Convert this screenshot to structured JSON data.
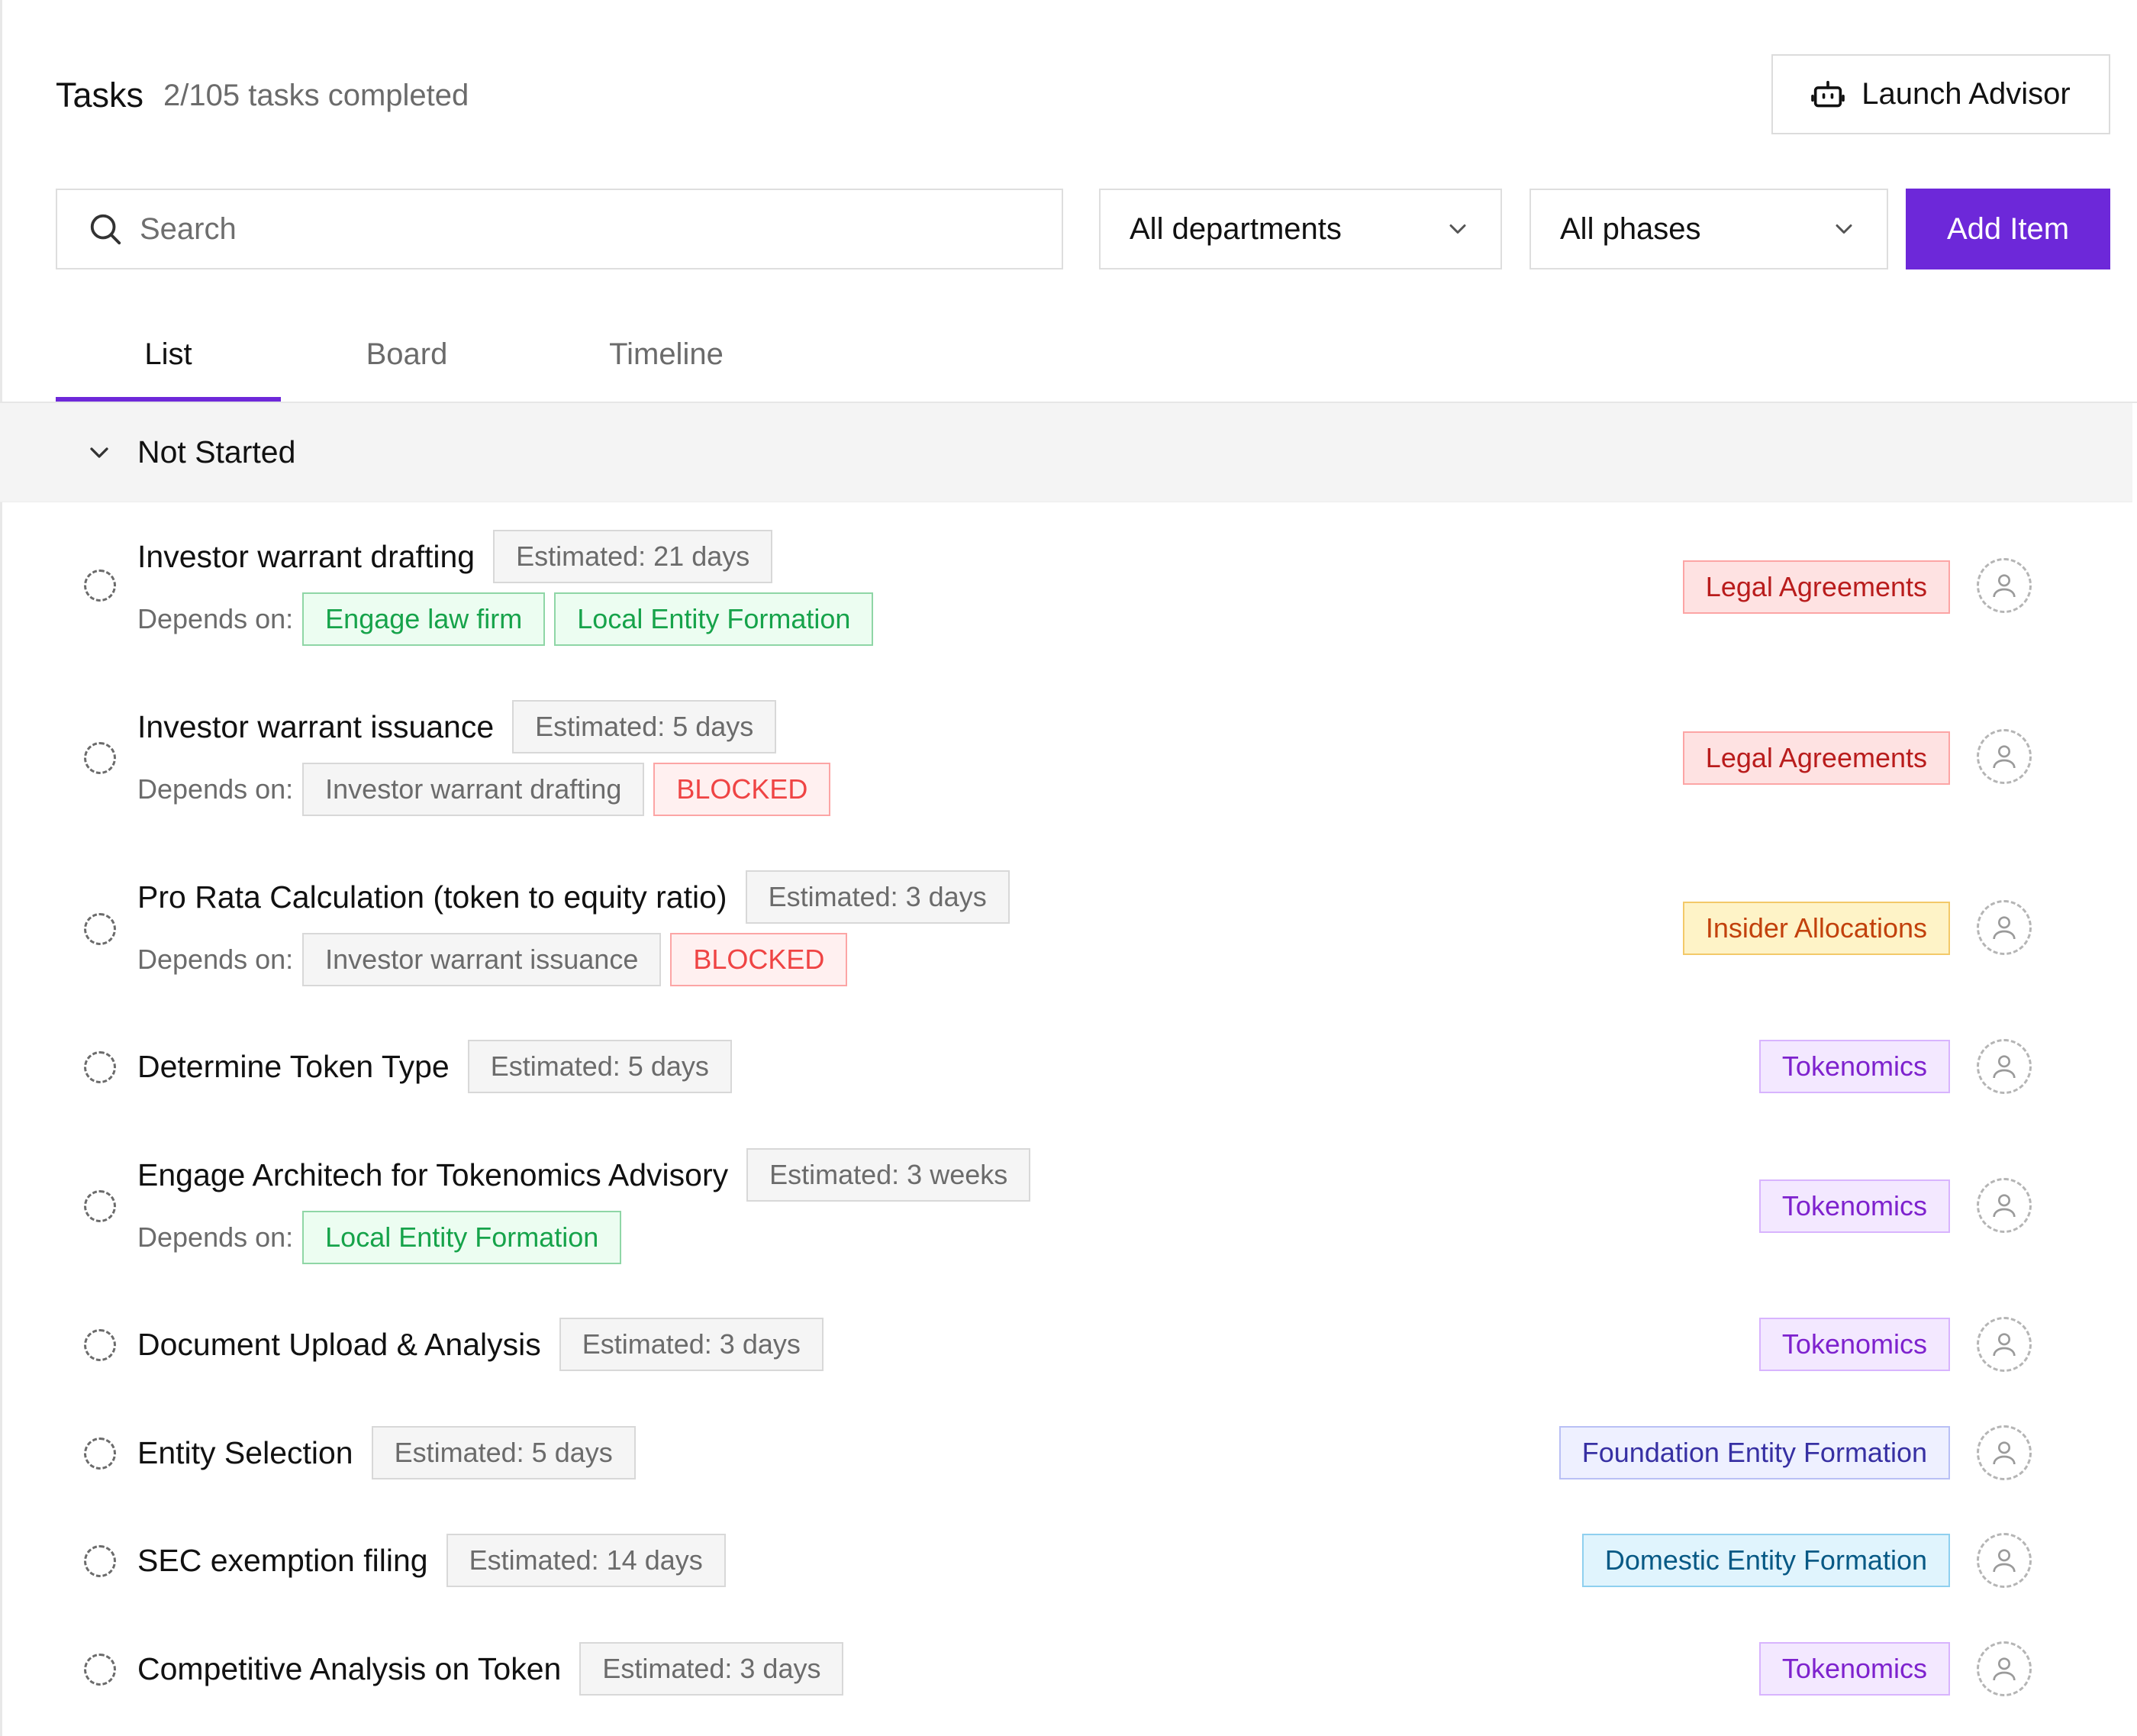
{
  "header": {
    "title": "Tasks",
    "progress": "2/105 tasks completed",
    "launch_label": "Launch Advisor"
  },
  "toolbar": {
    "search_placeholder": "Search",
    "department_selected": "All departments",
    "phase_selected": "All phases",
    "add_label": "Add Item"
  },
  "tabs": [
    {
      "label": "List",
      "active": true
    },
    {
      "label": "Board",
      "active": false
    },
    {
      "label": "Timeline",
      "active": false
    }
  ],
  "group": {
    "title": "Not Started"
  },
  "depends_label": "Depends on:",
  "tasks": [
    {
      "title": "Investor warrant drafting",
      "estimate": "Estimated: 21 days",
      "depends": [
        "Engage law firm",
        "Local Entity Formation"
      ],
      "tag": "Legal Agreements"
    },
    {
      "title": "Investor warrant issuance",
      "estimate": "Estimated: 5 days",
      "depends": [
        "Investor warrant drafting",
        "BLOCKED"
      ],
      "tag": "Legal Agreements"
    },
    {
      "title": "Pro Rata Calculation (token to equity ratio)",
      "estimate": "Estimated: 3 days",
      "depends": [
        "Investor warrant issuance",
        "BLOCKED"
      ],
      "tag": "Insider Allocations"
    },
    {
      "title": "Determine Token Type",
      "estimate": "Estimated: 5 days",
      "tag": "Tokenomics"
    },
    {
      "title": "Engage Architech for Tokenomics Advisory",
      "estimate": "Estimated: 3 weeks",
      "depends": [
        "Local Entity Formation"
      ],
      "tag": "Tokenomics"
    },
    {
      "title": "Document Upload & Analysis",
      "estimate": "Estimated: 3 days",
      "tag": "Tokenomics"
    },
    {
      "title": "Entity Selection",
      "estimate": "Estimated: 5 days",
      "tag": "Foundation Entity Formation"
    },
    {
      "title": "SEC exemption filing",
      "estimate": "Estimated: 14 days",
      "tag": "Domestic Entity Formation"
    },
    {
      "title": "Competitive Analysis on Token",
      "estimate": "Estimated: 3 days",
      "tag": "Tokenomics"
    }
  ],
  "colors": {
    "accent": "#6d28d9",
    "legal": "#b91c1c",
    "insider": "#c2410c",
    "tokenomics": "#7e22ce",
    "foundation": "#3730a3",
    "domestic": "#075985",
    "dependency_ok": "#16a34a",
    "blocked": "#ef4444"
  }
}
